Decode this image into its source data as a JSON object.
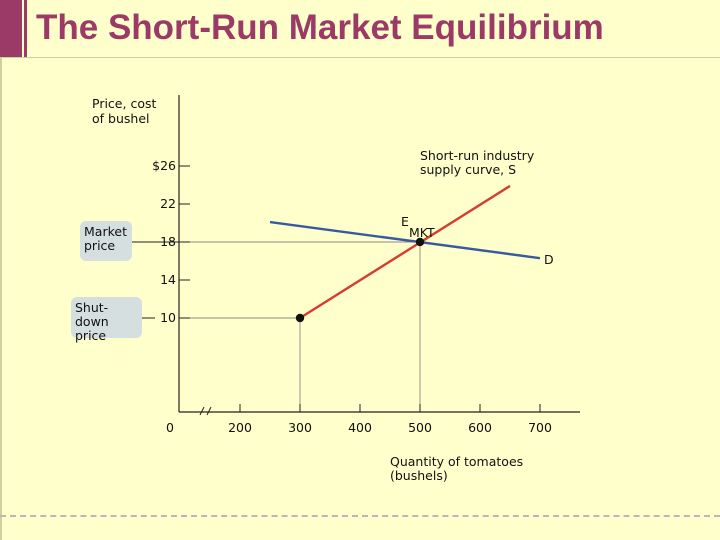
{
  "slide": {
    "title": "The Short-Run Market Equilibrium",
    "accent_color": "#9b3a66"
  },
  "callouts": {
    "market_price": "Market price",
    "shutdown_price": "Shut-down price"
  },
  "chart_data": {
    "type": "line",
    "ylabel": "Price, cost of bushel",
    "xlabel": "Quantity of tomatoes (bushels)",
    "y_ticks": [
      {
        "value": 26,
        "label": "$26"
      },
      {
        "value": 22,
        "label": "22"
      },
      {
        "value": 18,
        "label": "18"
      },
      {
        "value": 14,
        "label": "14"
      },
      {
        "value": 10,
        "label": "10"
      }
    ],
    "x_ticks": [
      {
        "value": 0,
        "label": "0"
      },
      {
        "value": 200,
        "label": "200"
      },
      {
        "value": 300,
        "label": "300"
      },
      {
        "value": 400,
        "label": "400"
      },
      {
        "value": 500,
        "label": "500"
      },
      {
        "value": 600,
        "label": "600"
      },
      {
        "value": 700,
        "label": "700"
      }
    ],
    "axis_break": true,
    "series": [
      {
        "name": "D",
        "color": "#3a5aa0",
        "points": [
          [
            250,
            20.1
          ],
          [
            700,
            16.3
          ]
        ]
      },
      {
        "name": "Short-run industry supply curve, S",
        "color": "#d93a32",
        "points": [
          [
            300,
            10
          ],
          [
            650,
            23.9
          ]
        ]
      }
    ],
    "points": [
      {
        "label": "",
        "x": 300,
        "y": 10
      },
      {
        "label": "E",
        "sublabel": "MKT",
        "x": 500,
        "y": 18
      }
    ]
  }
}
